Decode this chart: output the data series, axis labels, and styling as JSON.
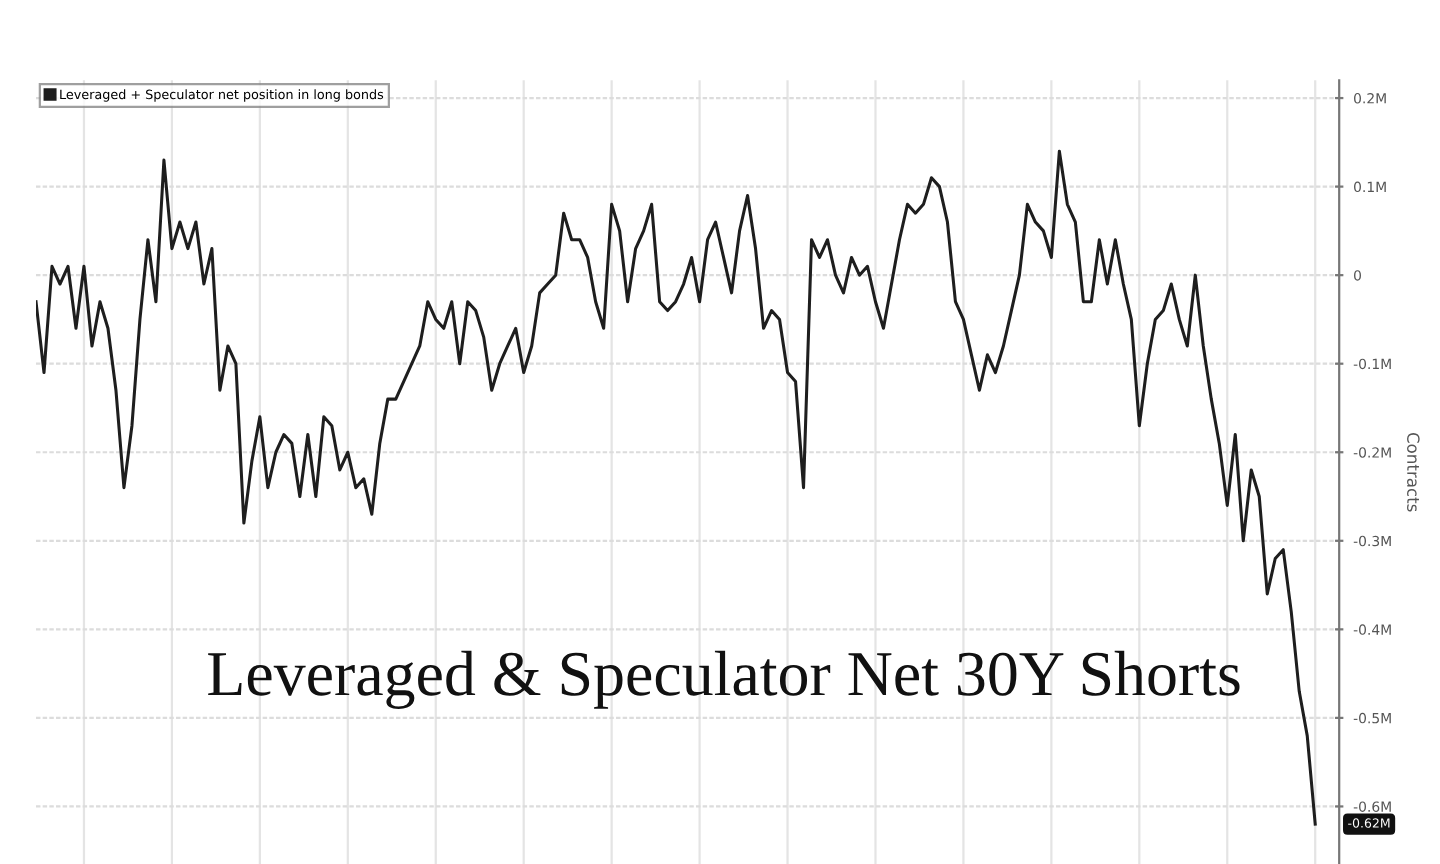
{
  "chart_data": {
    "type": "line",
    "title": "Leveraged & Speculator Net 30Y Shorts",
    "ylabel": "Contracts",
    "categories": [
      null,
      null,
      null,
      null,
      null,
      null,
      null,
      null,
      null,
      null,
      null,
      null,
      null,
      null,
      null,
      null,
      null,
      null,
      null,
      null,
      null,
      null,
      null,
      null,
      null,
      null,
      null,
      null,
      null,
      null,
      null,
      null,
      null,
      null,
      null,
      null,
      null,
      null,
      null,
      null,
      null,
      null,
      null,
      null,
      null,
      null,
      null,
      null,
      null,
      null,
      null,
      null,
      null,
      null,
      null,
      null,
      null,
      null,
      null,
      null,
      null,
      null,
      null,
      null,
      null,
      null,
      null,
      null,
      null,
      null,
      null,
      null,
      null,
      null,
      null,
      null,
      null,
      null,
      null,
      null,
      null,
      null,
      null,
      null,
      null,
      null,
      null,
      null,
      null,
      null,
      null,
      null,
      null,
      null,
      null,
      null,
      null,
      null,
      null,
      null,
      null,
      null,
      null,
      null,
      null,
      null,
      null,
      null,
      null,
      null,
      null,
      null,
      null,
      null,
      null,
      null,
      null,
      null,
      null,
      null,
      null,
      null,
      null,
      null,
      null,
      null,
      null,
      null,
      null,
      null,
      null,
      null,
      null,
      null,
      null,
      null,
      null,
      null,
      null,
      null,
      null,
      null,
      null,
      null,
      null,
      null,
      null,
      null,
      null,
      null,
      null,
      null,
      null,
      null,
      null,
      null,
      null,
      null,
      null,
      null,
      null
    ],
    "series": [
      {
        "name": "Leveraged + Speculator net position in long bonds",
        "color": "#1e1e1e",
        "values": [
          -0.03,
          -0.11,
          0.01,
          -0.01,
          0.01,
          -0.06,
          0.01,
          -0.08,
          -0.03,
          -0.06,
          -0.13,
          -0.24,
          -0.17,
          -0.05,
          0.04,
          -0.03,
          0.13,
          0.03,
          0.06,
          0.03,
          0.06,
          -0.01,
          0.03,
          -0.13,
          -0.08,
          -0.1,
          -0.28,
          -0.21,
          -0.16,
          -0.24,
          -0.2,
          -0.18,
          -0.19,
          -0.25,
          -0.18,
          -0.25,
          -0.16,
          -0.17,
          -0.22,
          -0.2,
          -0.24,
          -0.23,
          -0.27,
          -0.19,
          -0.14,
          -0.14,
          -0.12,
          -0.1,
          -0.08,
          -0.03,
          -0.05,
          -0.06,
          -0.03,
          -0.1,
          -0.03,
          -0.04,
          -0.07,
          -0.13,
          -0.1,
          -0.08,
          -0.06,
          -0.11,
          -0.08,
          -0.02,
          -0.01,
          0.0,
          0.07,
          0.04,
          0.04,
          0.02,
          -0.03,
          -0.06,
          0.08,
          0.05,
          -0.03,
          0.03,
          0.05,
          0.08,
          -0.03,
          -0.04,
          -0.03,
          -0.01,
          0.02,
          -0.03,
          0.04,
          0.06,
          0.02,
          -0.02,
          0.05,
          0.09,
          0.03,
          -0.06,
          -0.04,
          -0.05,
          -0.11,
          -0.12,
          -0.24,
          0.04,
          0.02,
          0.04,
          0.0,
          -0.02,
          0.02,
          0.0,
          0.01,
          -0.03,
          -0.06,
          -0.01,
          0.04,
          0.08,
          0.07,
          0.08,
          0.11,
          0.1,
          0.06,
          -0.03,
          -0.05,
          -0.09,
          -0.13,
          -0.09,
          -0.11,
          -0.08,
          -0.04,
          0.0,
          0.08,
          0.06,
          0.05,
          0.02,
          0.14,
          0.08,
          0.06,
          -0.03,
          -0.03,
          0.04,
          -0.01,
          0.04,
          -0.01,
          -0.05,
          -0.17,
          -0.1,
          -0.05,
          -0.04,
          -0.01,
          -0.05,
          -0.08,
          0.0,
          -0.08,
          -0.14,
          -0.19,
          -0.26,
          -0.18,
          -0.3,
          -0.22,
          -0.25,
          -0.36,
          -0.32,
          -0.31,
          -0.38,
          -0.47,
          -0.52,
          -0.62
        ]
      }
    ],
    "ylim": [
      -0.665,
      0.22
    ],
    "yticks": [
      {
        "value": 0.2,
        "label": "0.2M"
      },
      {
        "value": 0.1,
        "label": "0.1M"
      },
      0,
      {
        "value": -0.1,
        "label": "-0.1M"
      },
      {
        "value": -0.2,
        "label": "-0.2M"
      },
      {
        "value": -0.3,
        "label": "-0.3M"
      },
      {
        "value": -0.4,
        "label": "-0.4M"
      },
      {
        "value": -0.5,
        "label": "-0.5M"
      },
      {
        "value": -0.6,
        "label": "-0.6M"
      }
    ],
    "tick_labels": "y",
    "annotations": [
      {
        "text": "-0.62M",
        "y": -0.62
      }
    ],
    "grid": true,
    "legend": "top left",
    "line_style": "solid",
    "marker": "none"
  }
}
